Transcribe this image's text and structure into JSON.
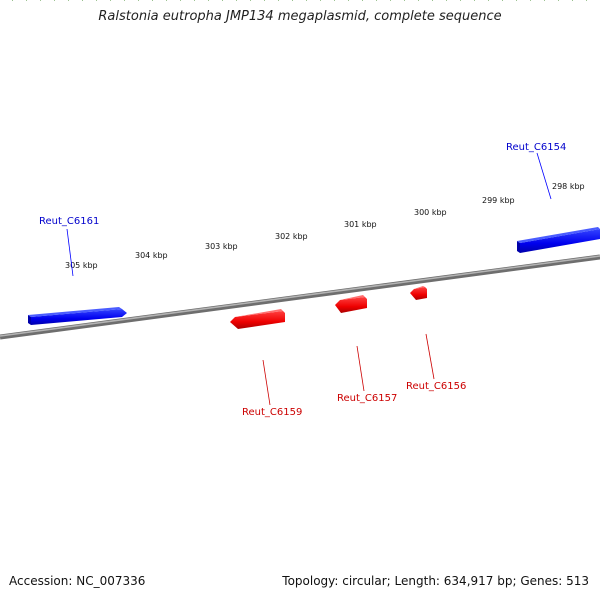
{
  "title": "Ralstonia eutropha JMP134 megaplasmid, complete sequence",
  "footer": {
    "accession": "Accession: NC_007336",
    "info": "Topology: circular; Length: 634,917 bp; Genes: 513"
  },
  "colors": {
    "forward_gene": "#0000ff",
    "reverse_gene": "#ff0000",
    "tick": "#2a7d12",
    "backbone": "#8a8a8a"
  },
  "ruler_labels": [
    "298 kbp",
    "299 kbp",
    "300 kbp",
    "301 kbp",
    "302 kbp",
    "303 kbp",
    "304 kbp",
    "305 kbp"
  ],
  "genes": [
    {
      "name": "Reut_C6154",
      "strand": "forward"
    },
    {
      "name": "Reut_C6161",
      "strand": "forward"
    },
    {
      "name": "Reut_C6156",
      "strand": "reverse"
    },
    {
      "name": "Reut_C6157",
      "strand": "reverse"
    },
    {
      "name": "Reut_C6159",
      "strand": "reverse"
    }
  ]
}
